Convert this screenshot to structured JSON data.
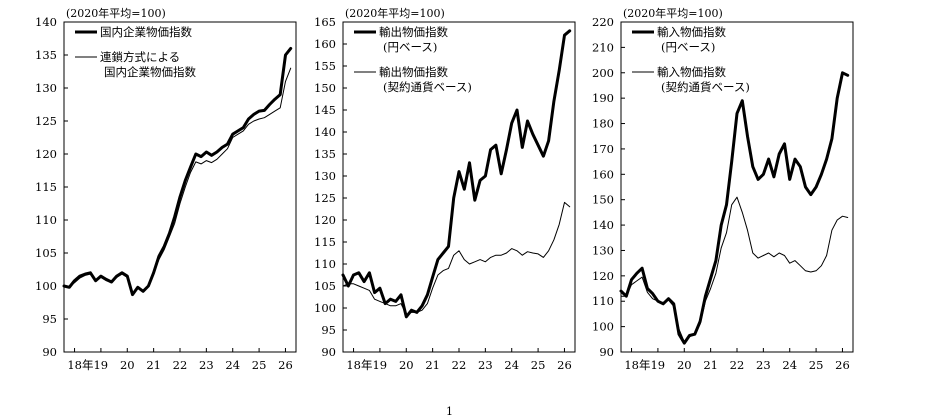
{
  "page_number": "1",
  "chart_data": [
    {
      "type": "line",
      "unit_note": "(2020年平均=100)",
      "ylim": [
        90,
        140
      ],
      "yticks": [
        90,
        95,
        100,
        105,
        110,
        115,
        120,
        125,
        130,
        135,
        140
      ],
      "xlim": [
        17.6,
        26.4
      ],
      "xticks": [
        {
          "v": 18.5,
          "label": "18年19"
        },
        {
          "v": 20,
          "label": "20"
        },
        {
          "v": 21,
          "label": "21"
        },
        {
          "v": 22,
          "label": "22"
        },
        {
          "v": 23,
          "label": "23"
        },
        {
          "v": 24,
          "label": "24"
        },
        {
          "v": 25,
          "label": "25"
        },
        {
          "v": 26,
          "label": "26"
        }
      ],
      "legend_position": "top-left",
      "series": [
        {
          "name": [
            "国内企業物価指数"
          ],
          "style": "thick",
          "x": [
            17.6,
            17.8,
            18.0,
            18.2,
            18.4,
            18.6,
            18.8,
            19.0,
            19.2,
            19.4,
            19.6,
            19.8,
            20.0,
            20.2,
            20.4,
            20.6,
            20.8,
            21.0,
            21.2,
            21.4,
            21.6,
            21.8,
            22.0,
            22.2,
            22.4,
            22.6,
            22.8,
            23.0,
            23.2,
            23.4,
            23.6,
            23.8,
            24.0,
            24.2,
            24.4,
            24.6,
            24.8,
            25.0,
            25.2,
            25.4,
            25.6,
            25.8,
            26.0,
            26.2
          ],
          "values": [
            100.0,
            99.8,
            100.8,
            101.5,
            101.8,
            102.0,
            100.8,
            101.5,
            101.0,
            100.6,
            101.5,
            102.0,
            101.5,
            98.7,
            99.8,
            99.2,
            100.0,
            102.0,
            104.5,
            106.0,
            108.0,
            110.5,
            113.5,
            116.0,
            118.0,
            120.0,
            119.6,
            120.3,
            119.8,
            120.3,
            121.0,
            121.5,
            123.0,
            123.5,
            124.0,
            125.3,
            126.0,
            126.5,
            126.6,
            127.5,
            128.3,
            129.0,
            135.0,
            136.0
          ]
        },
        {
          "name": [
            "連鎖方式による",
            "国内企業物価指数"
          ],
          "style": "thin",
          "x": [
            17.6,
            17.8,
            18.0,
            18.2,
            18.4,
            18.6,
            18.8,
            19.0,
            19.2,
            19.4,
            19.6,
            19.8,
            20.0,
            20.2,
            20.4,
            20.6,
            20.8,
            21.0,
            21.2,
            21.4,
            21.6,
            21.8,
            22.0,
            22.2,
            22.4,
            22.6,
            22.8,
            23.0,
            23.2,
            23.4,
            23.6,
            23.8,
            24.0,
            24.2,
            24.4,
            24.6,
            24.8,
            25.0,
            25.2,
            25.4,
            25.6,
            25.8,
            26.0,
            26.2
          ],
          "values": [
            100.0,
            99.9,
            100.5,
            101.2,
            101.6,
            101.8,
            100.7,
            101.3,
            100.8,
            100.5,
            101.3,
            101.8,
            101.3,
            98.9,
            99.7,
            99.3,
            100.0,
            101.8,
            104.0,
            105.5,
            107.5,
            109.5,
            112.5,
            115.0,
            117.2,
            118.8,
            118.5,
            119.0,
            118.7,
            119.2,
            120.0,
            120.8,
            122.5,
            123.0,
            123.5,
            124.5,
            125.0,
            125.3,
            125.5,
            126.0,
            126.5,
            127.0,
            131.0,
            133.0
          ]
        }
      ]
    },
    {
      "type": "line",
      "unit_note": "(2020年平均=100)",
      "ylim": [
        90,
        165
      ],
      "yticks": [
        90,
        95,
        100,
        105,
        110,
        115,
        120,
        125,
        130,
        135,
        140,
        145,
        150,
        155,
        160,
        165
      ],
      "xlim": [
        17.6,
        26.4
      ],
      "xticks": [
        {
          "v": 18.5,
          "label": "18年19"
        },
        {
          "v": 20,
          "label": "20"
        },
        {
          "v": 21,
          "label": "21"
        },
        {
          "v": 22,
          "label": "22"
        },
        {
          "v": 23,
          "label": "23"
        },
        {
          "v": 24,
          "label": "24"
        },
        {
          "v": 25,
          "label": "25"
        },
        {
          "v": 26,
          "label": "26"
        }
      ],
      "legend_position": "top-left",
      "series": [
        {
          "name": [
            "輸出物価指数",
            "(円ベース)"
          ],
          "style": "thick",
          "x": [
            17.6,
            17.8,
            18.0,
            18.2,
            18.4,
            18.6,
            18.8,
            19.0,
            19.2,
            19.4,
            19.6,
            19.8,
            20.0,
            20.2,
            20.4,
            20.6,
            20.8,
            21.0,
            21.2,
            21.4,
            21.6,
            21.8,
            22.0,
            22.2,
            22.4,
            22.6,
            22.8,
            23.0,
            23.2,
            23.4,
            23.6,
            23.8,
            24.0,
            24.2,
            24.4,
            24.6,
            24.8,
            25.0,
            25.2,
            25.4,
            25.6,
            25.8,
            26.0,
            26.2
          ],
          "values": [
            107.5,
            105.0,
            107.5,
            108.0,
            106.0,
            108.0,
            103.5,
            104.5,
            101.0,
            102.0,
            101.5,
            103.0,
            98.0,
            99.5,
            99.0,
            100.5,
            103.0,
            107.0,
            111.0,
            112.5,
            114.0,
            125.0,
            131.0,
            127.0,
            133.0,
            124.5,
            129.0,
            130.0,
            136.0,
            137.0,
            130.5,
            136.0,
            142.0,
            145.0,
            136.5,
            142.5,
            139.5,
            137.0,
            134.5,
            138.0,
            147.0,
            154.0,
            162.0,
            163.0
          ]
        },
        {
          "name": [
            "輸出物価指数",
            "(契約通貨ベース)"
          ],
          "style": "thin",
          "x": [
            17.6,
            17.8,
            18.0,
            18.2,
            18.4,
            18.6,
            18.8,
            19.0,
            19.2,
            19.4,
            19.6,
            19.8,
            20.0,
            20.2,
            20.4,
            20.6,
            20.8,
            21.0,
            21.2,
            21.4,
            21.6,
            21.8,
            22.0,
            22.2,
            22.4,
            22.6,
            22.8,
            23.0,
            23.2,
            23.4,
            23.6,
            23.8,
            24.0,
            24.2,
            24.4,
            24.6,
            24.8,
            25.0,
            25.2,
            25.4,
            25.6,
            25.8,
            26.0,
            26.2
          ],
          "values": [
            105.0,
            105.5,
            105.5,
            105.0,
            104.5,
            104.0,
            102.0,
            101.5,
            101.0,
            100.5,
            100.5,
            101.0,
            98.5,
            99.0,
            99.0,
            99.5,
            101.0,
            104.5,
            107.5,
            108.5,
            109.0,
            112.0,
            113.0,
            111.0,
            110.0,
            110.5,
            111.0,
            110.5,
            111.5,
            112.0,
            112.0,
            112.5,
            113.5,
            113.0,
            112.0,
            112.8,
            112.5,
            112.3,
            111.5,
            113.0,
            115.5,
            119.0,
            124.0,
            123.0
          ]
        }
      ]
    },
    {
      "type": "line",
      "unit_note": "(2020年平均=100)",
      "ylim": [
        90,
        220
      ],
      "yticks": [
        90,
        100,
        110,
        120,
        130,
        140,
        150,
        160,
        170,
        180,
        190,
        200,
        210,
        220
      ],
      "xlim": [
        17.6,
        26.4
      ],
      "xticks": [
        {
          "v": 18.5,
          "label": "18年19"
        },
        {
          "v": 20,
          "label": "20"
        },
        {
          "v": 21,
          "label": "21"
        },
        {
          "v": 22,
          "label": "22"
        },
        {
          "v": 23,
          "label": "23"
        },
        {
          "v": 24,
          "label": "24"
        },
        {
          "v": 25,
          "label": "25"
        },
        {
          "v": 26,
          "label": "26"
        }
      ],
      "legend_position": "top-left",
      "series": [
        {
          "name": [
            "輸入物価指数",
            "(円ベース)"
          ],
          "style": "thick",
          "x": [
            17.6,
            17.8,
            18.0,
            18.2,
            18.4,
            18.6,
            18.8,
            19.0,
            19.2,
            19.4,
            19.6,
            19.8,
            20.0,
            20.2,
            20.4,
            20.6,
            20.8,
            21.0,
            21.2,
            21.4,
            21.6,
            21.8,
            22.0,
            22.2,
            22.4,
            22.6,
            22.8,
            23.0,
            23.2,
            23.4,
            23.6,
            23.8,
            24.0,
            24.2,
            24.4,
            24.6,
            24.8,
            25.0,
            25.2,
            25.4,
            25.6,
            25.8,
            26.0,
            26.2
          ],
          "values": [
            114.0,
            112.0,
            118.5,
            121.0,
            123.0,
            115.0,
            113.0,
            110.0,
            109.0,
            111.0,
            109.0,
            97.0,
            93.5,
            96.5,
            97.0,
            102.0,
            112.0,
            119.0,
            126.0,
            140.0,
            148.0,
            165.0,
            184.0,
            189.0,
            175.0,
            163.0,
            158.0,
            160.0,
            166.0,
            159.0,
            168.0,
            172.0,
            158.0,
            166.0,
            163.0,
            155.0,
            152.0,
            155.0,
            160.0,
            166.0,
            174.0,
            190.0,
            200.0,
            199.0
          ]
        },
        {
          "name": [
            "輸入物価指数",
            "(契約通貨ベース)"
          ],
          "style": "thin",
          "x": [
            17.6,
            17.8,
            18.0,
            18.2,
            18.4,
            18.6,
            18.8,
            19.0,
            19.2,
            19.4,
            19.6,
            19.8,
            20.0,
            20.2,
            20.4,
            20.6,
            20.8,
            21.0,
            21.2,
            21.4,
            21.6,
            21.8,
            22.0,
            22.2,
            22.4,
            22.6,
            22.8,
            23.0,
            23.2,
            23.4,
            23.6,
            23.8,
            24.0,
            24.2,
            24.4,
            24.6,
            24.8,
            25.0,
            25.2,
            25.4,
            25.6,
            25.8,
            26.0,
            26.2
          ],
          "values": [
            112.0,
            112.0,
            116.5,
            118.0,
            119.5,
            113.5,
            111.0,
            110.0,
            109.5,
            110.5,
            108.0,
            99.0,
            94.0,
            96.0,
            97.0,
            101.0,
            110.0,
            115.0,
            121.0,
            131.0,
            137.0,
            148.0,
            151.0,
            145.0,
            138.0,
            129.0,
            127.0,
            128.0,
            129.0,
            127.5,
            129.0,
            128.0,
            125.0,
            126.0,
            124.0,
            122.0,
            121.5,
            122.0,
            124.0,
            128.0,
            138.0,
            142.0,
            143.5,
            143.0
          ]
        }
      ]
    }
  ]
}
